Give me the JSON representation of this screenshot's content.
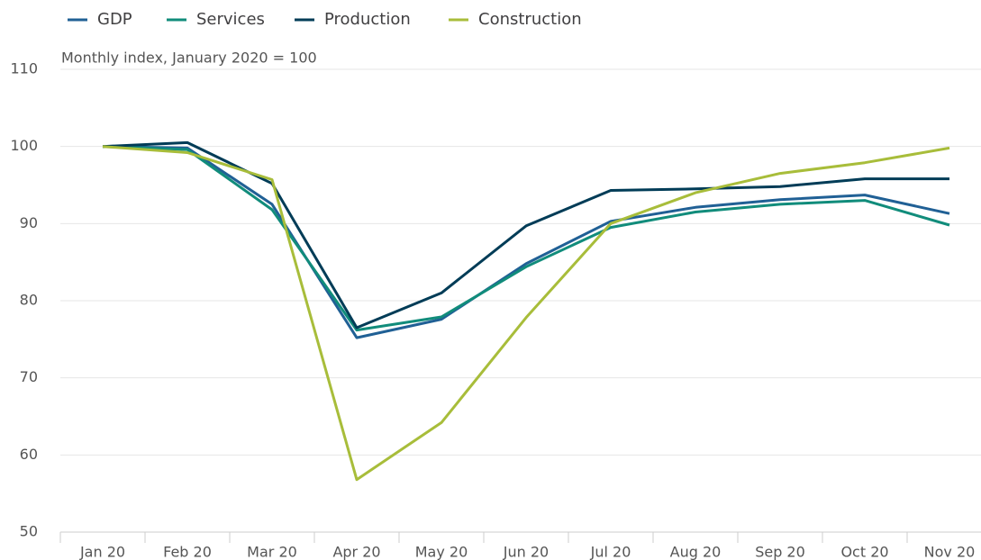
{
  "chart_data": {
    "type": "line",
    "subtitle": "Monthly index, January 2020 = 100",
    "categories": [
      "Jan 20",
      "Feb 20",
      "Mar 20",
      "Apr 20",
      "May 20",
      "Jun 20",
      "Jul 20",
      "Aug 20",
      "Sep 20",
      "Oct 20",
      "Nov 20"
    ],
    "series": [
      {
        "name": "GDP",
        "color": "#206095",
        "values": [
          100,
          99.8,
          92.5,
          75.2,
          77.6,
          84.8,
          90.3,
          92.1,
          93.1,
          93.7,
          91.3
        ]
      },
      {
        "name": "Services",
        "color": "#118c7b",
        "values": [
          100,
          99.6,
          91.8,
          76.2,
          77.9,
          84.4,
          89.5,
          91.5,
          92.5,
          93.0,
          89.8
        ]
      },
      {
        "name": "Production",
        "color": "#003c57",
        "values": [
          100,
          100.5,
          95.2,
          76.5,
          81.0,
          89.7,
          94.3,
          94.5,
          94.8,
          95.8,
          95.8
        ]
      },
      {
        "name": "Construction",
        "color": "#a8bd3a",
        "values": [
          100,
          99.2,
          95.7,
          56.8,
          64.2,
          77.8,
          90.0,
          94.0,
          96.5,
          97.9,
          99.8
        ]
      }
    ],
    "ylim": [
      50,
      110
    ],
    "yticks": [
      50,
      60,
      70,
      80,
      90,
      100,
      110
    ],
    "grid": true,
    "legend": "top"
  }
}
